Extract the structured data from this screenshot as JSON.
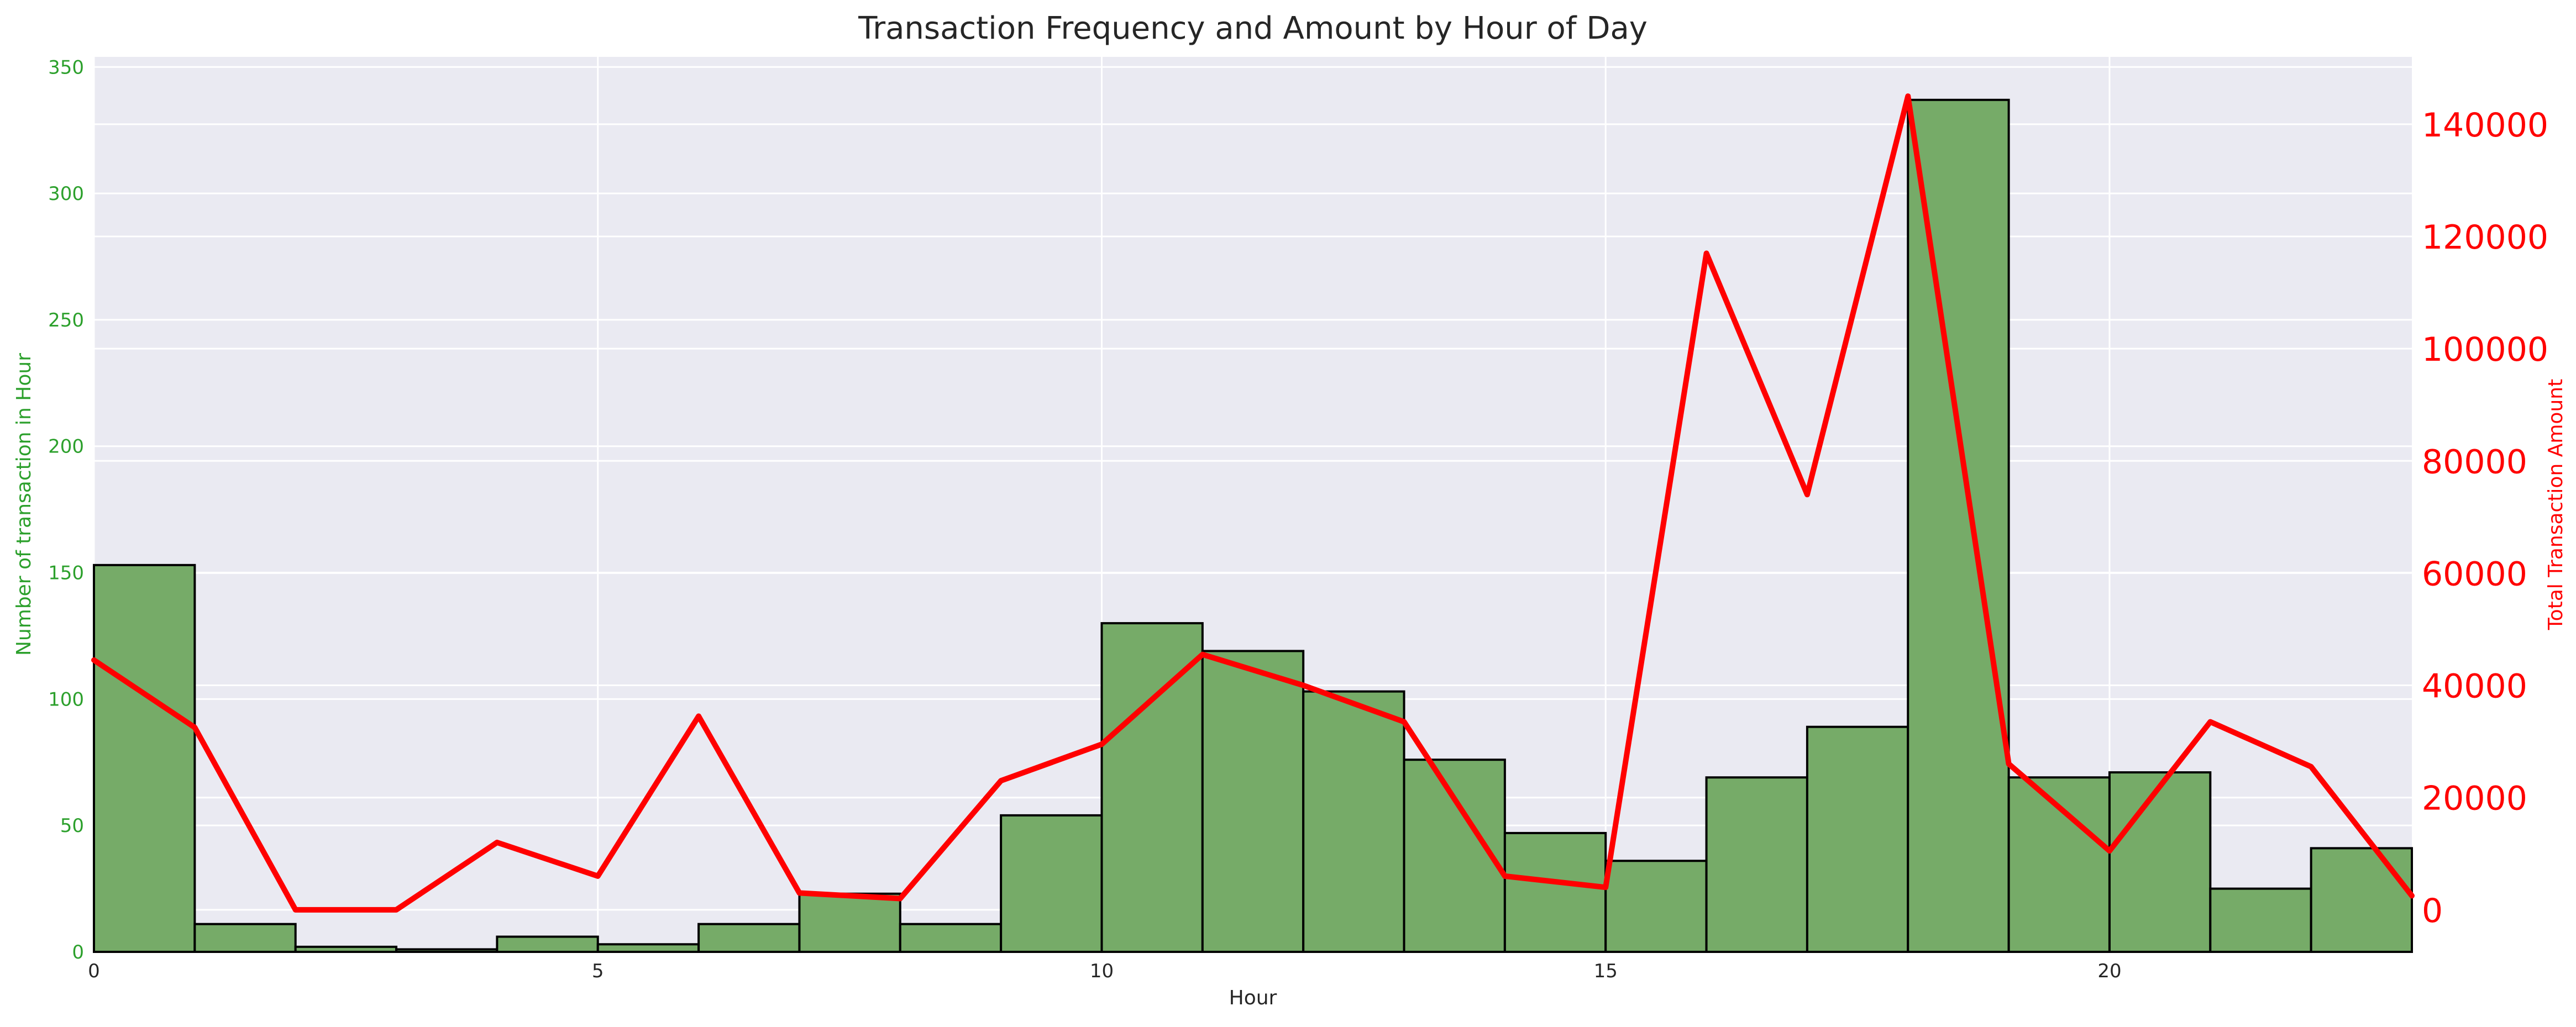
{
  "colors": {
    "bar_fill": "#76ab68",
    "bar_edge": "#000000",
    "line": "#ff0000",
    "left_axis": "#2ca02c",
    "right_axis": "#ff0000",
    "plot_bg": "#eaeaf2",
    "grid": "#ffffff",
    "text": "#262626"
  },
  "chart_data": {
    "type": "bar",
    "title": "Transaction Frequency and Amount by Hour of Day",
    "xlabel": "Hour",
    "ylabel": "Number of transaction in Hour",
    "ylabel_right": "Total Transaction Amount",
    "xlim": [
      0,
      23
    ],
    "ylim": [
      0,
      354
    ],
    "ylim_right": [
      -7500,
      152000
    ],
    "x_ticks": [
      0,
      5,
      10,
      15,
      20
    ],
    "y_ticks": [
      0,
      50,
      100,
      150,
      200,
      250,
      300,
      350
    ],
    "y_ticks_right": [
      0,
      20000,
      40000,
      60000,
      80000,
      100000,
      120000,
      140000
    ],
    "grid": true,
    "legend": false,
    "histogram": {
      "name": "Number of transaction in Hour",
      "bin_edges": [
        0,
        1,
        2,
        3,
        4,
        5,
        6,
        7,
        8,
        9,
        10,
        11,
        12,
        13,
        14,
        15,
        16,
        17,
        18,
        19,
        20,
        21,
        22,
        23
      ],
      "counts": [
        153,
        11,
        2,
        1,
        6,
        3,
        11,
        23,
        11,
        54,
        130,
        119,
        103,
        76,
        47,
        36,
        69,
        89,
        337,
        69,
        71,
        25,
        41
      ]
    },
    "line": {
      "name": "Total Transaction Amount",
      "x": [
        0,
        1,
        2,
        3,
        4,
        5,
        6,
        7,
        8,
        9,
        10,
        11,
        12,
        13,
        14,
        15,
        16,
        17,
        18,
        19,
        20,
        21,
        22,
        23
      ],
      "y": [
        44500,
        32500,
        0,
        0,
        12000,
        6000,
        34500,
        3000,
        2000,
        23000,
        29500,
        45500,
        40000,
        33500,
        6000,
        4000,
        117000,
        74000,
        145000,
        26000,
        10500,
        33500,
        25500,
        2500
      ]
    }
  }
}
